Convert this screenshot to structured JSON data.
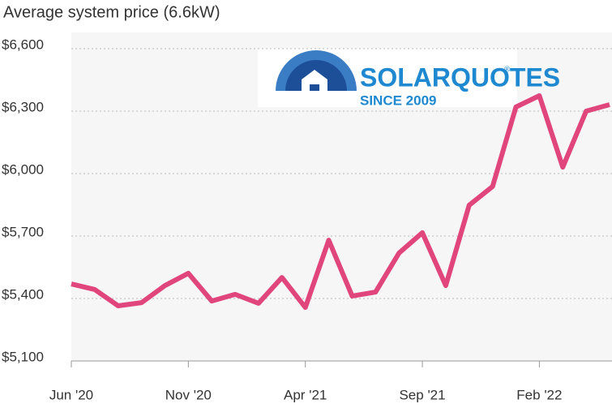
{
  "chart_data": {
    "type": "line",
    "title": "Average system price (6.6kW)",
    "logo": {
      "name": "SOLARQUOTES",
      "mark": "®",
      "tagline": "SINCE 2009"
    },
    "categories": [
      "Jun '20",
      null,
      null,
      null,
      null,
      "Nov '20",
      null,
      null,
      null,
      null,
      "Apr '21",
      null,
      null,
      null,
      null,
      "Sep '21",
      null,
      null,
      null,
      null,
      "Feb '22",
      null,
      null,
      null
    ],
    "series": [
      {
        "name": "Average system price",
        "color": "#e0457b",
        "values": [
          5470,
          5443,
          5365,
          5380,
          5462,
          5521,
          5388,
          5420,
          5377,
          5501,
          5357,
          5680,
          5412,
          5431,
          5618,
          5716,
          5462,
          5848,
          5938,
          6320,
          6374,
          6031,
          6300,
          6331
        ]
      }
    ],
    "ylim": [
      5100,
      6600
    ],
    "yticks": [
      {
        "value": 5100,
        "label": "$5,100"
      },
      {
        "value": 5400,
        "label": "$5,400"
      },
      {
        "value": 5700,
        "label": "$5,700"
      },
      {
        "value": 6000,
        "label": "$6,000"
      },
      {
        "value": 6300,
        "label": "$6,300"
      },
      {
        "value": 6600,
        "label": "$6,600"
      }
    ],
    "grid": true
  }
}
